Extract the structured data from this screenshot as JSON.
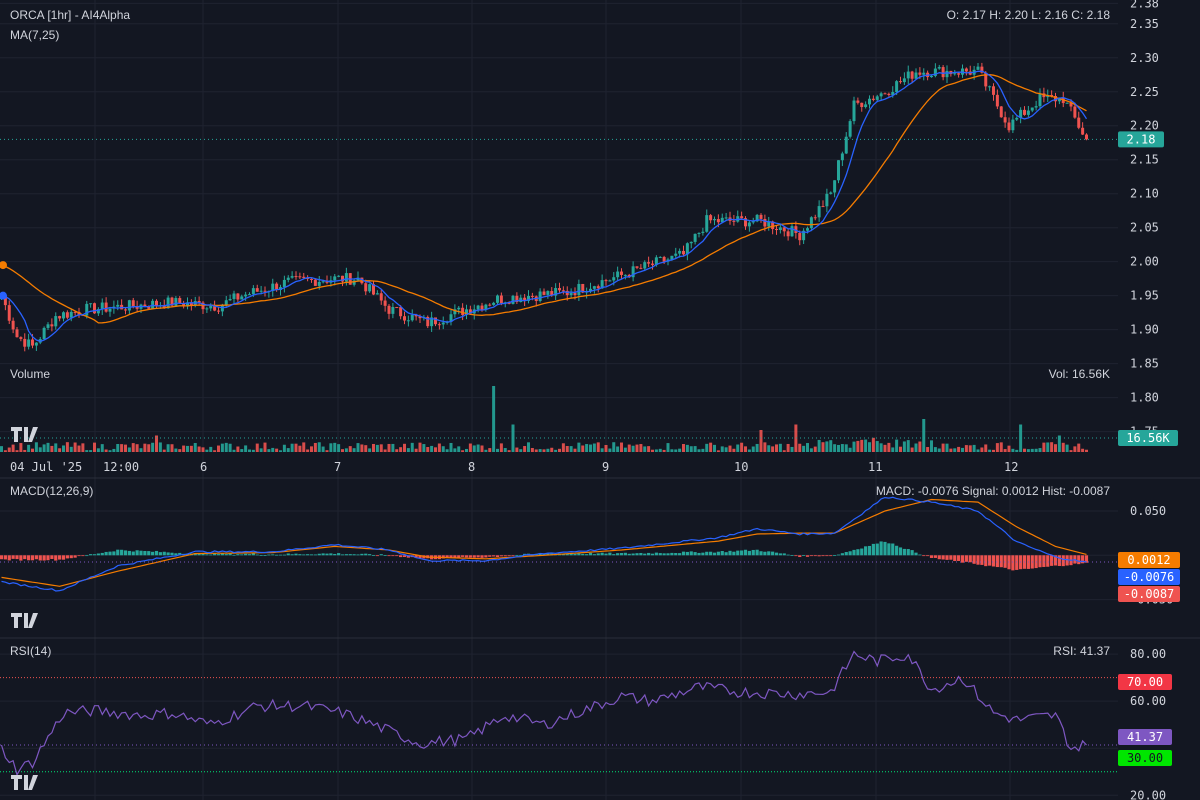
{
  "header": {
    "title": "ORCA [1hr] - AI4Alpha",
    "ma_label": "MA(7,25)",
    "ohlc": "O: 2.17 H: 2.20 L: 2.16 C: 2.18",
    "volume_label": "Volume",
    "vol_readout": "Vol: 16.56K",
    "macd_label": "MACD(12,26,9)",
    "macd_readout": "MACD: -0.0076 Signal: 0.0012 Hist: -0.0087",
    "rsi_label": "RSI(14)",
    "rsi_readout": "RSI: 41.37"
  },
  "colors": {
    "background": "#131722",
    "up": "#26a69a",
    "down": "#ef5350",
    "ma7": "#2962ff",
    "ma25": "#f57c00",
    "rsi": "#7e57c2",
    "grid": "#1f2330"
  },
  "chart_data": [
    {
      "type": "candlestick",
      "name": "price",
      "x_ticks": [
        "04 Jul '25",
        "12:00",
        "6",
        "7",
        "8",
        "9",
        "10",
        "11",
        "12"
      ],
      "y_ticks": [
        "1.75",
        "1.80",
        "1.85",
        "1.90",
        "1.95",
        "2.00",
        "2.05",
        "2.10",
        "2.15",
        "2.20",
        "2.25",
        "2.30",
        "2.35",
        "2.38"
      ],
      "ylim": [
        1.72,
        2.385
      ],
      "last_price_tag": "2.18",
      "last_price": 2.18,
      "close_anchors": [
        [
          0,
          1.95
        ],
        [
          4,
          1.89
        ],
        [
          8,
          1.875
        ],
        [
          14,
          1.92
        ],
        [
          22,
          1.93
        ],
        [
          34,
          1.935
        ],
        [
          44,
          1.94
        ],
        [
          56,
          1.935
        ],
        [
          62,
          1.95
        ],
        [
          74,
          1.97
        ],
        [
          86,
          1.975
        ],
        [
          92,
          1.975
        ],
        [
          100,
          1.93
        ],
        [
          110,
          1.91
        ],
        [
          120,
          1.93
        ],
        [
          128,
          1.945
        ],
        [
          136,
          1.95
        ],
        [
          146,
          1.955
        ],
        [
          160,
          1.98
        ],
        [
          170,
          2.0
        ],
        [
          176,
          2.01
        ],
        [
          182,
          2.06
        ],
        [
          196,
          2.06
        ],
        [
          206,
          2.04
        ],
        [
          214,
          2.1
        ],
        [
          220,
          2.23
        ],
        [
          228,
          2.25
        ],
        [
          236,
          2.28
        ],
        [
          244,
          2.28
        ],
        [
          252,
          2.28
        ],
        [
          260,
          2.2
        ],
        [
          268,
          2.24
        ],
        [
          274,
          2.24
        ],
        [
          280,
          2.18
        ]
      ],
      "ma7_start": 1.95,
      "ma25_start": 1.995
    },
    {
      "type": "bar",
      "name": "volume",
      "volume_tag": "16.56K",
      "spikes": [
        [
          40,
          3
        ],
        [
          127,
          12
        ],
        [
          132,
          5
        ],
        [
          196,
          4
        ],
        [
          205,
          5
        ],
        [
          238,
          6
        ],
        [
          263,
          5
        ],
        [
          273,
          3
        ]
      ]
    },
    {
      "type": "macd",
      "y_ticks": [
        "0.050",
        "-0.050"
      ],
      "ylim": [
        -0.09,
        0.085
      ],
      "signal_tag": "0.0012",
      "macd_tag": "-0.0076",
      "hist_tag": "-0.0087",
      "macd_anchors": [
        [
          0,
          -0.03
        ],
        [
          15,
          -0.04
        ],
        [
          30,
          -0.012
        ],
        [
          50,
          0.004
        ],
        [
          70,
          0.004
        ],
        [
          86,
          0.012
        ],
        [
          100,
          0.006
        ],
        [
          110,
          -0.006
        ],
        [
          125,
          -0.006
        ],
        [
          140,
          0.002
        ],
        [
          160,
          0.008
        ],
        [
          185,
          0.02
        ],
        [
          195,
          0.03
        ],
        [
          206,
          0.024
        ],
        [
          215,
          0.025
        ],
        [
          228,
          0.066
        ],
        [
          240,
          0.06
        ],
        [
          252,
          0.05
        ],
        [
          262,
          0.015
        ],
        [
          272,
          -0.002
        ],
        [
          280,
          -0.008
        ]
      ],
      "signal_anchors": [
        [
          0,
          -0.025
        ],
        [
          15,
          -0.035
        ],
        [
          30,
          -0.018
        ],
        [
          50,
          0.002
        ],
        [
          70,
          0.003
        ],
        [
          86,
          0.01
        ],
        [
          100,
          0.006
        ],
        [
          110,
          -0.002
        ],
        [
          125,
          -0.004
        ],
        [
          140,
          0.0
        ],
        [
          160,
          0.006
        ],
        [
          185,
          0.016
        ],
        [
          195,
          0.024
        ],
        [
          206,
          0.025
        ],
        [
          215,
          0.025
        ],
        [
          228,
          0.05
        ],
        [
          240,
          0.063
        ],
        [
          252,
          0.06
        ],
        [
          262,
          0.032
        ],
        [
          272,
          0.01
        ],
        [
          280,
          0.001
        ]
      ]
    },
    {
      "type": "line",
      "name": "rsi",
      "y_ticks": [
        "80.00",
        "60.00",
        "20.00"
      ],
      "ylim": [
        18,
        86
      ],
      "tag_upper": "70.00",
      "tag_current": "41.37",
      "tag_lower": "30.00",
      "upper": 70,
      "lower": 30,
      "anchors": [
        [
          0,
          40
        ],
        [
          4,
          31
        ],
        [
          8,
          34
        ],
        [
          16,
          55
        ],
        [
          24,
          56
        ],
        [
          36,
          54
        ],
        [
          44,
          55
        ],
        [
          54,
          50
        ],
        [
          66,
          58
        ],
        [
          78,
          58
        ],
        [
          88,
          55
        ],
        [
          96,
          50
        ],
        [
          108,
          42
        ],
        [
          120,
          44
        ],
        [
          130,
          54
        ],
        [
          140,
          50
        ],
        [
          150,
          56
        ],
        [
          160,
          62
        ],
        [
          168,
          60
        ],
        [
          180,
          66
        ],
        [
          190,
          64
        ],
        [
          205,
          63
        ],
        [
          214,
          64
        ],
        [
          220,
          80
        ],
        [
          226,
          77
        ],
        [
          234,
          80
        ],
        [
          240,
          65
        ],
        [
          248,
          70
        ],
        [
          256,
          55
        ],
        [
          262,
          52
        ],
        [
          272,
          54
        ],
        [
          276,
          40
        ],
        [
          280,
          41.37
        ]
      ]
    }
  ]
}
